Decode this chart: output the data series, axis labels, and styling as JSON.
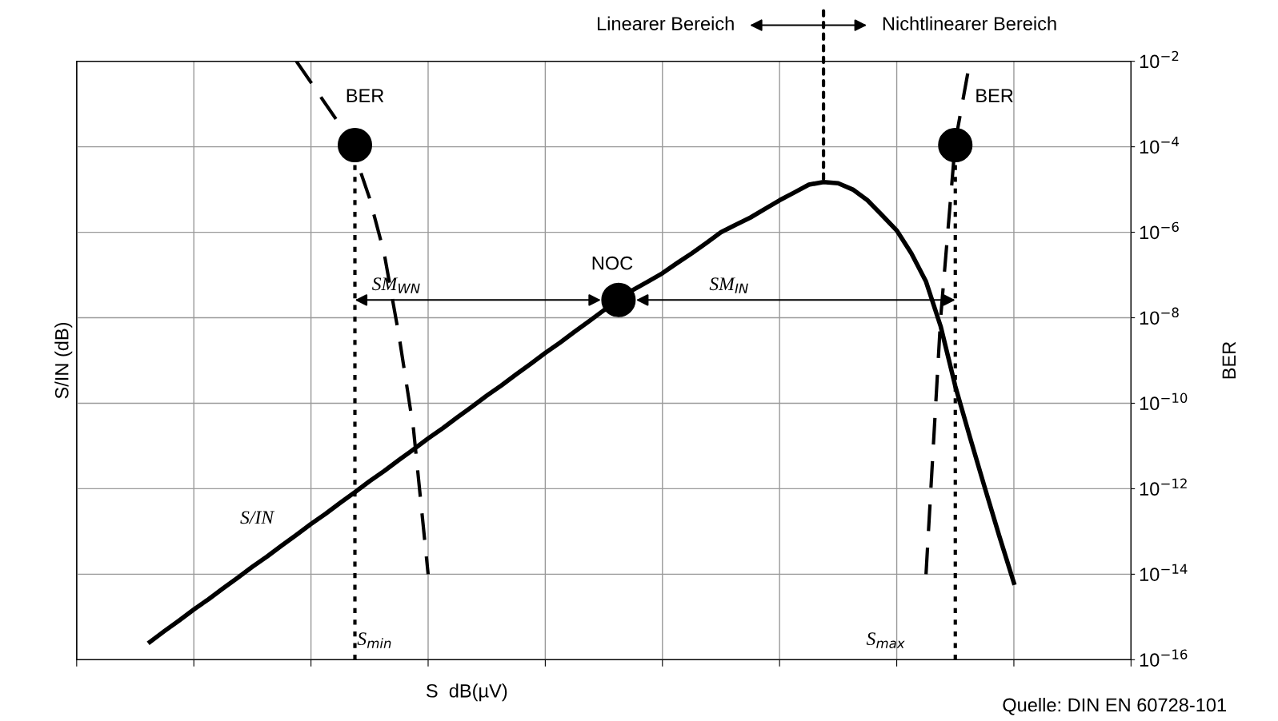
{
  "chart_data": {
    "type": "line",
    "xlabel": "S  dB(µV)",
    "ylabel": "S/IN (dB)",
    "y2label": "BER",
    "categories": [
      null,
      null,
      null,
      null,
      null,
      null,
      null,
      null,
      null,
      null,
      null,
      null,
      null,
      null,
      null,
      null,
      null,
      null,
      null,
      null,
      null,
      null,
      null,
      null,
      null,
      null,
      null,
      null,
      null,
      null,
      null,
      null,
      null,
      null,
      null,
      null,
      null,
      null,
      null,
      null,
      null,
      null,
      null,
      null,
      null,
      null,
      null,
      null,
      null,
      null,
      null,
      null,
      null,
      null,
      null,
      null,
      null,
      null,
      null,
      null,
      null,
      null,
      null,
      null,
      null,
      null,
      null,
      null,
      null,
      null,
      null,
      null,
      null
    ],
    "y2lim": [
      1e-16,
      0.01
    ],
    "log": "y2",
    "y2ticks": [
      {
        "value": 0.01,
        "label": "10$^{−2}$"
      },
      {
        "value": 0.0001,
        "label": "10$^{−4}$"
      },
      {
        "value": 1e-06,
        "label": "10$^{−6}$"
      },
      {
        "value": 1e-08,
        "label": "10$^{−8}$"
      },
      {
        "value": 1e-10,
        "label": "10$^{−10}$"
      },
      {
        "value": 1e-12,
        "label": "10$^{−12}$"
      },
      {
        "value": 1e-14,
        "label": "10$^{−14}$"
      },
      {
        "value": 1e-16,
        "label": "10$^{−16}$"
      }
    ],
    "grid": true,
    "tick_labels": "y",
    "series": [
      {
        "axis": "y2",
        "color": "#000000",
        "line_style": "solid",
        "marker": "none",
        "values": [
          null,
          null,
          null,
          null,
          null,
          2.6e-16,
          4.7e-16,
          8.3e-16,
          1.5e-15,
          2.6e-15,
          4.7e-15,
          8.3e-15,
          1.5e-14,
          2.6e-14,
          4.7e-14,
          8.3e-14,
          1.5e-13,
          2.6e-13,
          4.7e-13,
          8.3e-13,
          1.5e-12,
          2.6e-12,
          4.7e-12,
          8.3e-12,
          1.5e-11,
          2.6e-11,
          4.7e-11,
          8.3e-11,
          1.5e-10,
          2.6e-10,
          4.7e-10,
          8.3e-10,
          1.5e-09,
          2.6e-09,
          4.7e-09,
          8.3e-09,
          1.5e-08,
          2.6e-08,
          4.5e-08,
          7e-08,
          1.1e-07,
          1.9e-07,
          3.2e-07,
          5.6e-07,
          1e-06,
          1.5e-06,
          2.2e-06,
          3.5e-06,
          5.6e-06,
          8.5e-06,
          1.3e-05,
          1.5e-05,
          1.4e-05,
          1e-05,
          5.6e-06,
          2.5e-06,
          1.1e-06,
          3.2e-07,
          7e-08,
          6.3e-09,
          2.5e-10,
          1.6e-11,
          1.1e-12,
          7.9e-14,
          6.3e-15,
          null,
          null,
          null,
          null,
          null,
          null,
          null,
          null
        ]
      },
      {
        "axis": "y2",
        "color": "#000000",
        "line_style": "dashed",
        "marker": "none",
        "values": [
          null,
          null,
          null,
          null,
          null,
          null,
          null,
          null,
          null,
          null,
          null,
          null,
          null,
          null,
          null,
          0.01,
          0.0032,
          0.001,
          0.00032,
          6.3e-05,
          6.3e-06,
          3.2e-07,
          4e-09,
          2.5e-11,
          1e-14,
          null,
          null,
          null,
          null,
          null,
          null,
          null,
          null,
          null,
          null,
          null,
          null,
          null,
          null,
          null,
          null,
          null,
          null,
          null,
          null,
          null,
          null,
          null,
          null,
          null,
          null,
          null,
          null,
          null,
          null,
          null,
          null,
          null,
          null,
          null,
          null,
          null,
          null,
          null,
          null,
          null,
          null,
          null,
          null,
          null,
          null,
          null,
          null
        ]
      },
      {
        "axis": "y2",
        "color": "#000000",
        "line_style": "dashed",
        "marker": "none",
        "values": [
          null,
          null,
          null,
          null,
          null,
          null,
          null,
          null,
          null,
          null,
          null,
          null,
          null,
          null,
          null,
          null,
          null,
          null,
          null,
          null,
          null,
          null,
          null,
          null,
          null,
          null,
          null,
          null,
          null,
          null,
          null,
          null,
          null,
          null,
          null,
          null,
          null,
          null,
          null,
          null,
          null,
          null,
          null,
          null,
          null,
          null,
          null,
          null,
          null,
          null,
          null,
          null,
          null,
          null,
          null,
          null,
          null,
          null,
          1e-14,
          1e-08,
          0.00013,
          0.01,
          null,
          null,
          null,
          null,
          null,
          null,
          null,
          null,
          null,
          null,
          null
        ]
      },
      {
        "type": "lollipop",
        "axis": "y2",
        "color": "#000000",
        "line_style": "dotted",
        "marker": "circle",
        "values": [
          null,
          null,
          null,
          null,
          null,
          null,
          null,
          null,
          null,
          null,
          null,
          null,
          null,
          null,
          null,
          null,
          null,
          null,
          null,
          0.00011,
          null,
          null,
          null,
          null,
          null,
          null,
          null,
          null,
          null,
          null,
          null,
          null,
          null,
          null,
          null,
          null,
          null,
          null,
          null,
          null,
          null,
          null,
          null,
          null,
          null,
          null,
          null,
          null,
          null,
          null,
          null,
          null,
          null,
          null,
          null,
          null,
          null,
          null,
          null,
          null,
          0.00011,
          null,
          null,
          null,
          null,
          null,
          null,
          null,
          null,
          null,
          null,
          null,
          null
        ]
      },
      {
        "type": "scatter",
        "axis": "y2",
        "color": "#000000",
        "marker": "circle",
        "values": [
          null,
          null,
          null,
          null,
          null,
          null,
          null,
          null,
          null,
          null,
          null,
          null,
          null,
          null,
          null,
          null,
          null,
          null,
          null,
          null,
          null,
          null,
          null,
          null,
          null,
          null,
          null,
          null,
          null,
          null,
          null,
          null,
          null,
          null,
          null,
          null,
          null,
          2.6e-08,
          null,
          null,
          null,
          null,
          null,
          null,
          null,
          null,
          null,
          null,
          null,
          null,
          null,
          null,
          null,
          null,
          null,
          null,
          null,
          null,
          null,
          null,
          null,
          null,
          null,
          null,
          null,
          null,
          null,
          null,
          null,
          null,
          null,
          null,
          null
        ]
      }
    ],
    "annotations": [
      "BER",
      "BER",
      "NOC",
      "SM$_{WN}$",
      "SM$_{IN}$",
      "S/IN",
      "S$_{min}$",
      "S$_{max}$",
      "Linearer Bereich",
      "Nichtlinearer Bereich",
      "Quelle: DIN EN 60728-101"
    ]
  }
}
